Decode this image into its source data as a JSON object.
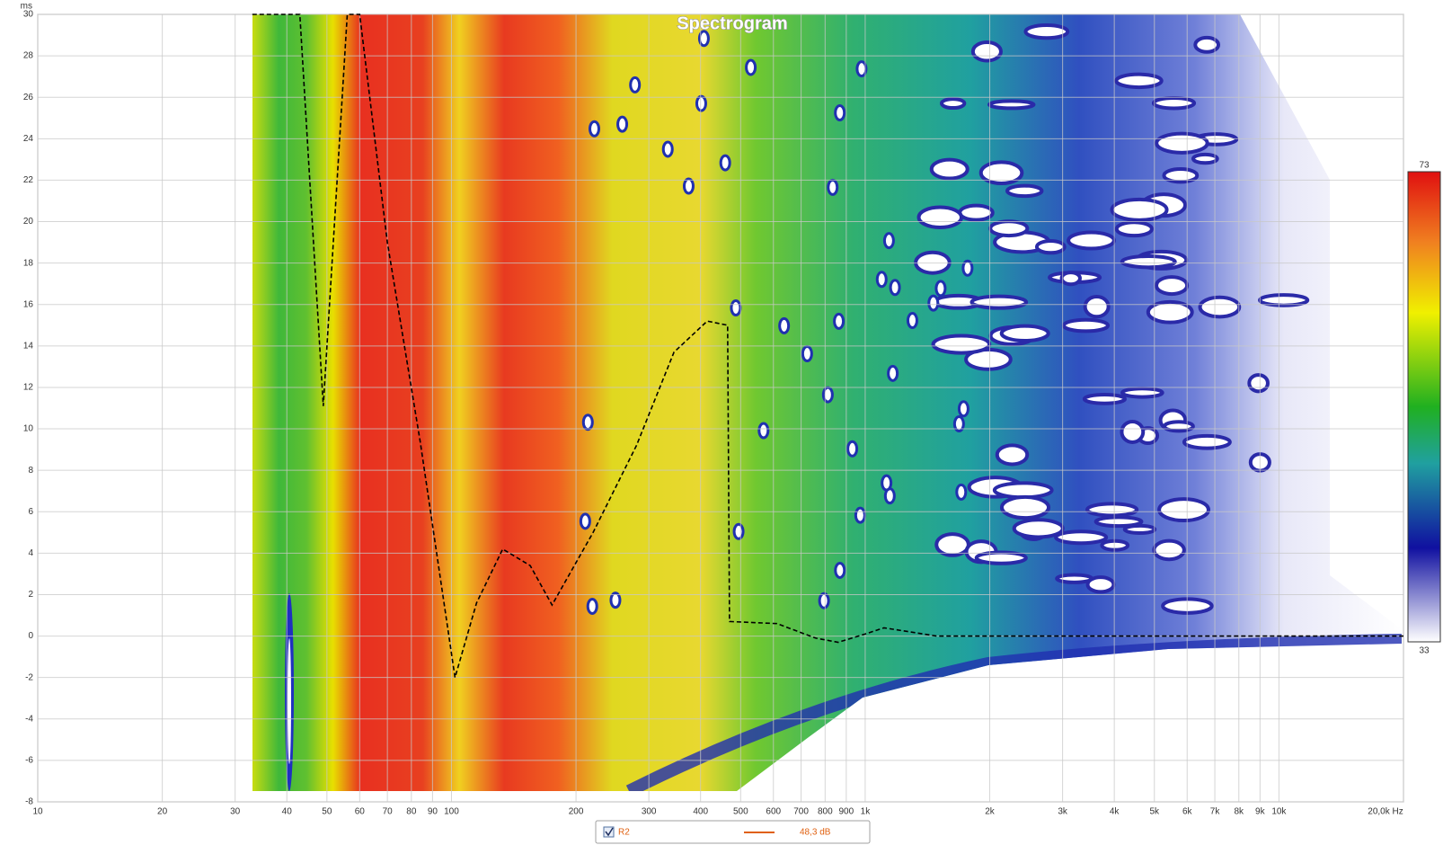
{
  "chart_data": {
    "type": "spectrogram",
    "title": "Spectrogram",
    "y_label": "ms",
    "xscale": "log",
    "grid": true,
    "xlim": [
      10,
      20000
    ],
    "xticks": [
      10,
      20,
      30,
      40,
      50,
      60,
      70,
      80,
      90,
      100,
      200,
      300,
      400,
      500,
      600,
      700,
      800,
      900,
      {
        "value": 1000,
        "label": "1k"
      },
      {
        "value": 2000,
        "label": "2k"
      },
      {
        "value": 3000,
        "label": "3k"
      },
      {
        "value": 4000,
        "label": "4k"
      },
      {
        "value": 5000,
        "label": "5k"
      },
      {
        "value": 6000,
        "label": "6k"
      },
      {
        "value": 7000,
        "label": "7k"
      },
      {
        "value": 8000,
        "label": "8k"
      },
      {
        "value": 9000,
        "label": "9k"
      },
      {
        "value": 10000,
        "label": "10k"
      },
      {
        "value": 20000,
        "label": "20,0k Hz"
      }
    ],
    "ylim": [
      -8,
      30
    ],
    "yticks": [
      -8,
      -6,
      -4,
      -2,
      0,
      2,
      4,
      6,
      8,
      10,
      12,
      14,
      16,
      18,
      20,
      22,
      24,
      26,
      28,
      30
    ],
    "color_scale": {
      "max": 73,
      "min": 33
    },
    "series": [
      {
        "name": "R2",
        "color": "#e06010",
        "legend_value": "48,3 dB"
      }
    ],
    "peak_line": {
      "x": [
        33,
        43,
        49,
        56,
        60,
        70,
        84,
        102,
        115,
        133,
        155,
        175,
        220,
        280,
        345,
        415,
        465,
        470,
        612,
        760,
        860,
        1000,
        1110,
        1490,
        5000,
        20000
      ],
      "values": [
        30,
        30,
        11.1,
        30,
        30,
        19,
        9.4,
        -2,
        1.6,
        4.2,
        3.4,
        1.5,
        5,
        9.2,
        13.7,
        15.2,
        15,
        0.7,
        0.6,
        -0.1,
        -0.3,
        0.1,
        0.4,
        0,
        0,
        0
      ],
      "color": "#000000"
    }
  }
}
